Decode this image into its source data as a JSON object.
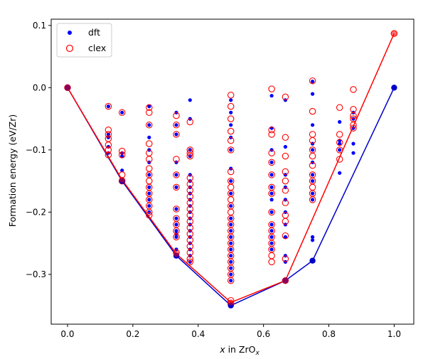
{
  "chart_data": {
    "type": "scatter",
    "xlabel": {
      "prefix": "x",
      "mid": " in ZrO",
      "sub": "x"
    },
    "ylabel": "Formation energy (eV/Zr)",
    "xlim": [
      -0.05,
      1.06
    ],
    "ylim": [
      -0.38,
      0.11
    ],
    "xticks": [
      0.0,
      0.2,
      0.4,
      0.6,
      0.8,
      1.0
    ],
    "xtick_labels": [
      "0.0",
      "0.2",
      "0.4",
      "0.6",
      "0.8",
      "1.0"
    ],
    "yticks": [
      0.1,
      0.0,
      -0.1,
      -0.2,
      -0.3
    ],
    "ytick_labels": [
      "0.1",
      "0.0",
      "−0.1",
      "−0.2",
      "−0.3"
    ],
    "grid": false,
    "legend_placement": "top-left",
    "series": [
      {
        "name": "dft",
        "marker": "filled-dot",
        "color": "#0000ff",
        "points": [
          [
            0.0,
            0.0
          ],
          [
            0.125,
            -0.03
          ],
          [
            0.125,
            -0.075
          ],
          [
            0.125,
            -0.08
          ],
          [
            0.125,
            -0.095
          ],
          [
            0.125,
            -0.105
          ],
          [
            0.167,
            -0.04
          ],
          [
            0.167,
            -0.105
          ],
          [
            0.167,
            -0.11
          ],
          [
            0.167,
            -0.133
          ],
          [
            0.167,
            -0.15
          ],
          [
            0.25,
            -0.03
          ],
          [
            0.25,
            -0.06
          ],
          [
            0.25,
            -0.08
          ],
          [
            0.25,
            -0.1
          ],
          [
            0.25,
            -0.12
          ],
          [
            0.25,
            -0.14
          ],
          [
            0.25,
            -0.16
          ],
          [
            0.25,
            -0.17
          ],
          [
            0.25,
            -0.18
          ],
          [
            0.25,
            -0.19
          ],
          [
            0.25,
            -0.2
          ],
          [
            0.333,
            -0.04
          ],
          [
            0.333,
            -0.06
          ],
          [
            0.333,
            -0.075
          ],
          [
            0.333,
            -0.12
          ],
          [
            0.333,
            -0.14
          ],
          [
            0.333,
            -0.16
          ],
          [
            0.333,
            -0.195
          ],
          [
            0.333,
            -0.21
          ],
          [
            0.333,
            -0.22
          ],
          [
            0.333,
            -0.23
          ],
          [
            0.333,
            -0.235
          ],
          [
            0.333,
            -0.24
          ],
          [
            0.333,
            -0.26
          ],
          [
            0.375,
            -0.02
          ],
          [
            0.375,
            -0.05
          ],
          [
            0.375,
            -0.1
          ],
          [
            0.375,
            -0.11
          ],
          [
            0.375,
            -0.14
          ],
          [
            0.375,
            -0.15
          ],
          [
            0.375,
            -0.16
          ],
          [
            0.375,
            -0.17
          ],
          [
            0.375,
            -0.18
          ],
          [
            0.375,
            -0.19
          ],
          [
            0.375,
            -0.2
          ],
          [
            0.375,
            -0.21
          ],
          [
            0.375,
            -0.22
          ],
          [
            0.375,
            -0.23
          ],
          [
            0.375,
            -0.24
          ],
          [
            0.375,
            -0.25
          ],
          [
            0.375,
            -0.26
          ],
          [
            0.375,
            -0.27
          ],
          [
            0.375,
            -0.28
          ],
          [
            0.5,
            -0.02
          ],
          [
            0.5,
            -0.04
          ],
          [
            0.5,
            -0.06
          ],
          [
            0.5,
            -0.08
          ],
          [
            0.5,
            -0.1
          ],
          [
            0.5,
            -0.13
          ],
          [
            0.5,
            -0.15
          ],
          [
            0.5,
            -0.17
          ],
          [
            0.5,
            -0.19
          ],
          [
            0.5,
            -0.21
          ],
          [
            0.5,
            -0.22
          ],
          [
            0.5,
            -0.23
          ],
          [
            0.5,
            -0.24
          ],
          [
            0.5,
            -0.25
          ],
          [
            0.5,
            -0.26
          ],
          [
            0.5,
            -0.27
          ],
          [
            0.5,
            -0.28
          ],
          [
            0.5,
            -0.29
          ],
          [
            0.5,
            -0.3
          ],
          [
            0.5,
            -0.31
          ],
          [
            0.625,
            -0.013
          ],
          [
            0.625,
            -0.065
          ],
          [
            0.625,
            -0.1
          ],
          [
            0.625,
            -0.12
          ],
          [
            0.625,
            -0.14
          ],
          [
            0.625,
            -0.16
          ],
          [
            0.625,
            -0.17
          ],
          [
            0.625,
            -0.18
          ],
          [
            0.625,
            -0.2
          ],
          [
            0.625,
            -0.22
          ],
          [
            0.625,
            -0.23
          ],
          [
            0.625,
            -0.24
          ],
          [
            0.625,
            -0.25
          ],
          [
            0.625,
            -0.26
          ],
          [
            0.667,
            -0.02
          ],
          [
            0.667,
            -0.095
          ],
          [
            0.667,
            -0.14
          ],
          [
            0.667,
            -0.16
          ],
          [
            0.667,
            -0.18
          ],
          [
            0.667,
            -0.2
          ],
          [
            0.667,
            -0.22
          ],
          [
            0.667,
            -0.24
          ],
          [
            0.667,
            -0.27
          ],
          [
            0.667,
            -0.28
          ],
          [
            0.75,
            0.01
          ],
          [
            0.75,
            -0.01
          ],
          [
            0.75,
            -0.06
          ],
          [
            0.75,
            -0.09
          ],
          [
            0.75,
            -0.1
          ],
          [
            0.75,
            -0.12
          ],
          [
            0.75,
            -0.14
          ],
          [
            0.75,
            -0.15
          ],
          [
            0.75,
            -0.17
          ],
          [
            0.75,
            -0.18
          ],
          [
            0.75,
            -0.24
          ],
          [
            0.75,
            -0.245
          ],
          [
            0.833,
            -0.055
          ],
          [
            0.833,
            -0.085
          ],
          [
            0.833,
            -0.09
          ],
          [
            0.833,
            -0.1
          ],
          [
            0.833,
            -0.137
          ],
          [
            0.875,
            -0.04
          ],
          [
            0.875,
            -0.05
          ],
          [
            0.875,
            -0.065
          ],
          [
            0.875,
            -0.09
          ],
          [
            0.875,
            -0.105
          ]
        ]
      },
      {
        "name": "clex",
        "marker": "open-circle",
        "color": "#ff0000",
        "points": [
          [
            0.0,
            0.0
          ],
          [
            0.125,
            -0.03
          ],
          [
            0.125,
            -0.068
          ],
          [
            0.125,
            -0.075
          ],
          [
            0.125,
            -0.082
          ],
          [
            0.125,
            -0.092
          ],
          [
            0.125,
            -0.1
          ],
          [
            0.125,
            -0.108
          ],
          [
            0.167,
            -0.04
          ],
          [
            0.167,
            -0.102
          ],
          [
            0.167,
            -0.108
          ],
          [
            0.167,
            -0.14
          ],
          [
            0.167,
            -0.15
          ],
          [
            0.25,
            -0.032
          ],
          [
            0.25,
            -0.04
          ],
          [
            0.25,
            -0.06
          ],
          [
            0.25,
            -0.09
          ],
          [
            0.25,
            -0.105
          ],
          [
            0.25,
            -0.115
          ],
          [
            0.25,
            -0.13
          ],
          [
            0.25,
            -0.14
          ],
          [
            0.25,
            -0.15
          ],
          [
            0.25,
            -0.16
          ],
          [
            0.25,
            -0.17
          ],
          [
            0.25,
            -0.18
          ],
          [
            0.25,
            -0.19
          ],
          [
            0.25,
            -0.2
          ],
          [
            0.25,
            -0.205
          ],
          [
            0.333,
            -0.045
          ],
          [
            0.333,
            -0.06
          ],
          [
            0.333,
            -0.075
          ],
          [
            0.333,
            -0.115
          ],
          [
            0.333,
            -0.14
          ],
          [
            0.333,
            -0.16
          ],
          [
            0.333,
            -0.195
          ],
          [
            0.333,
            -0.21
          ],
          [
            0.333,
            -0.22
          ],
          [
            0.333,
            -0.23
          ],
          [
            0.333,
            -0.24
          ],
          [
            0.333,
            -0.265
          ],
          [
            0.375,
            -0.055
          ],
          [
            0.375,
            -0.1
          ],
          [
            0.375,
            -0.105
          ],
          [
            0.375,
            -0.11
          ],
          [
            0.375,
            -0.145
          ],
          [
            0.375,
            -0.155
          ],
          [
            0.375,
            -0.165
          ],
          [
            0.375,
            -0.175
          ],
          [
            0.375,
            -0.185
          ],
          [
            0.375,
            -0.195
          ],
          [
            0.375,
            -0.205
          ],
          [
            0.375,
            -0.215
          ],
          [
            0.375,
            -0.225
          ],
          [
            0.375,
            -0.235
          ],
          [
            0.375,
            -0.245
          ],
          [
            0.375,
            -0.255
          ],
          [
            0.375,
            -0.265
          ],
          [
            0.375,
            -0.275
          ],
          [
            0.375,
            -0.28
          ],
          [
            0.5,
            -0.012
          ],
          [
            0.5,
            -0.03
          ],
          [
            0.5,
            -0.05
          ],
          [
            0.5,
            -0.07
          ],
          [
            0.5,
            -0.085
          ],
          [
            0.5,
            -0.1
          ],
          [
            0.5,
            -0.135
          ],
          [
            0.5,
            -0.15
          ],
          [
            0.5,
            -0.16
          ],
          [
            0.5,
            -0.17
          ],
          [
            0.5,
            -0.18
          ],
          [
            0.5,
            -0.19
          ],
          [
            0.5,
            -0.2
          ],
          [
            0.5,
            -0.21
          ],
          [
            0.5,
            -0.22
          ],
          [
            0.5,
            -0.23
          ],
          [
            0.5,
            -0.24
          ],
          [
            0.5,
            -0.25
          ],
          [
            0.5,
            -0.26
          ],
          [
            0.5,
            -0.27
          ],
          [
            0.5,
            -0.28
          ],
          [
            0.5,
            -0.29
          ],
          [
            0.5,
            -0.3
          ],
          [
            0.5,
            -0.31
          ],
          [
            0.5,
            -0.342
          ],
          [
            0.5,
            -0.347
          ],
          [
            0.625,
            -0.002
          ],
          [
            0.625,
            -0.068
          ],
          [
            0.625,
            -0.075
          ],
          [
            0.625,
            -0.105
          ],
          [
            0.625,
            -0.12
          ],
          [
            0.625,
            -0.14
          ],
          [
            0.625,
            -0.16
          ],
          [
            0.625,
            -0.17
          ],
          [
            0.625,
            -0.2
          ],
          [
            0.625,
            -0.22
          ],
          [
            0.625,
            -0.23
          ],
          [
            0.625,
            -0.24
          ],
          [
            0.625,
            -0.25
          ],
          [
            0.625,
            -0.26
          ],
          [
            0.625,
            -0.27
          ],
          [
            0.625,
            -0.28
          ],
          [
            0.667,
            -0.015
          ],
          [
            0.667,
            -0.08
          ],
          [
            0.667,
            -0.11
          ],
          [
            0.667,
            -0.135
          ],
          [
            0.667,
            -0.15
          ],
          [
            0.667,
            -0.165
          ],
          [
            0.667,
            -0.185
          ],
          [
            0.667,
            -0.205
          ],
          [
            0.667,
            -0.215
          ],
          [
            0.667,
            -0.238
          ],
          [
            0.667,
            -0.275
          ],
          [
            0.667,
            -0.31
          ],
          [
            0.75,
            0.011
          ],
          [
            0.75,
            -0.038
          ],
          [
            0.75,
            -0.075
          ],
          [
            0.75,
            -0.085
          ],
          [
            0.75,
            -0.1
          ],
          [
            0.75,
            -0.11
          ],
          [
            0.75,
            -0.125
          ],
          [
            0.75,
            -0.14
          ],
          [
            0.75,
            -0.15
          ],
          [
            0.75,
            -0.16
          ],
          [
            0.75,
            -0.17
          ],
          [
            0.75,
            -0.18
          ],
          [
            0.833,
            -0.032
          ],
          [
            0.833,
            -0.075
          ],
          [
            0.833,
            -0.088
          ],
          [
            0.833,
            -0.1
          ],
          [
            0.833,
            -0.115
          ],
          [
            0.875,
            -0.003
          ],
          [
            0.875,
            -0.035
          ],
          [
            0.875,
            -0.045
          ],
          [
            0.875,
            -0.05
          ],
          [
            0.875,
            -0.06
          ],
          [
            0.875,
            -0.065
          ],
          [
            1.0,
            0.087
          ]
        ]
      }
    ],
    "hulls": [
      {
        "name": "dft-hull",
        "color": "#0000cc",
        "points": [
          [
            0.0,
            0.0
          ],
          [
            0.167,
            -0.15
          ],
          [
            0.333,
            -0.27
          ],
          [
            0.5,
            -0.35
          ],
          [
            0.667,
            -0.31
          ],
          [
            0.75,
            -0.278
          ],
          [
            1.0,
            0.0
          ]
        ]
      },
      {
        "name": "clex-hull",
        "color": "#ff0000",
        "points": [
          [
            0.0,
            0.0
          ],
          [
            0.167,
            -0.148
          ],
          [
            0.333,
            -0.267
          ],
          [
            0.5,
            -0.345
          ],
          [
            0.667,
            -0.31
          ],
          [
            1.0,
            0.087
          ]
        ]
      }
    ]
  }
}
